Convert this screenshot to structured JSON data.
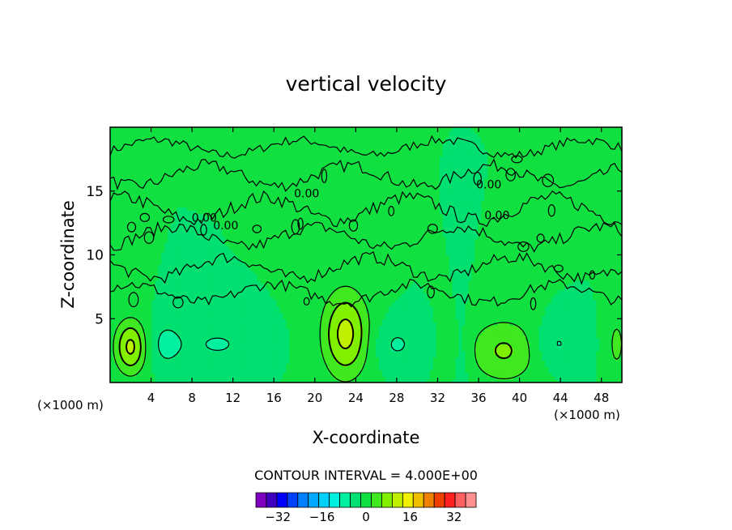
{
  "chart_data": {
    "type": "heatmap",
    "title": "vertical velocity",
    "xlabel": "X-coordinate",
    "ylabel": "Z-coordinate",
    "x_unit_left": "(×1000 m)",
    "x_unit_right": "(×1000 m)",
    "xlim": [
      0,
      50
    ],
    "ylim": [
      0,
      20
    ],
    "xticks": [
      4,
      8,
      12,
      16,
      20,
      24,
      28,
      32,
      36,
      40,
      44,
      48
    ],
    "yticks": [
      5,
      10,
      15
    ],
    "contour_interval_text": "CONTOUR INTERVAL = 4.000E+00",
    "contour_level_label": "0.00",
    "colorbar": {
      "min": -40,
      "max": 40,
      "step": 4,
      "tick_labels": [
        "−32",
        "−16",
        "0",
        "16",
        "32"
      ],
      "tick_values": [
        -32,
        -16,
        0,
        16,
        32
      ],
      "colors": [
        "#7f00bf",
        "#3f00bf",
        "#0000ff",
        "#0040ff",
        "#0080ff",
        "#00a8ff",
        "#00d0ff",
        "#00f0e0",
        "#00f0a0",
        "#00e070",
        "#10e040",
        "#40e820",
        "#80f000",
        "#c0f000",
        "#f0f000",
        "#f0c000",
        "#f08000",
        "#f04000",
        "#ff2020",
        "#ff6060",
        "#ff9090"
      ]
    },
    "features": [
      {
        "x": 2.0,
        "z": 2.8,
        "value": 13.0,
        "sx": 1.1,
        "sz": 1.5
      },
      {
        "x": 5.5,
        "z": 3.0,
        "value": -5.5,
        "sx": 1.2,
        "sz": 1.3
      },
      {
        "x": 10.5,
        "z": 3.0,
        "value": -4.5,
        "sx": 2.3,
        "sz": 1.0
      },
      {
        "x": 23.0,
        "z": 3.8,
        "value": 13.5,
        "sx": 1.6,
        "sz": 2.4
      },
      {
        "x": 28.0,
        "z": 3.0,
        "value": -4.5,
        "sx": 1.6,
        "sz": 1.2
      },
      {
        "x": 38.5,
        "z": 2.5,
        "value": 8.5,
        "sx": 2.5,
        "sz": 1.8
      },
      {
        "x": 43.5,
        "z": 3.0,
        "value": -5.0,
        "sx": 1.6,
        "sz": 1.3
      },
      {
        "x": 34.5,
        "z": 2.0,
        "value": -2.5,
        "sx": 0.6,
        "sz": 2.2
      },
      {
        "x": 49.5,
        "z": 3.0,
        "value": 5.0,
        "sx": 0.7,
        "sz": 1.8
      }
    ]
  }
}
